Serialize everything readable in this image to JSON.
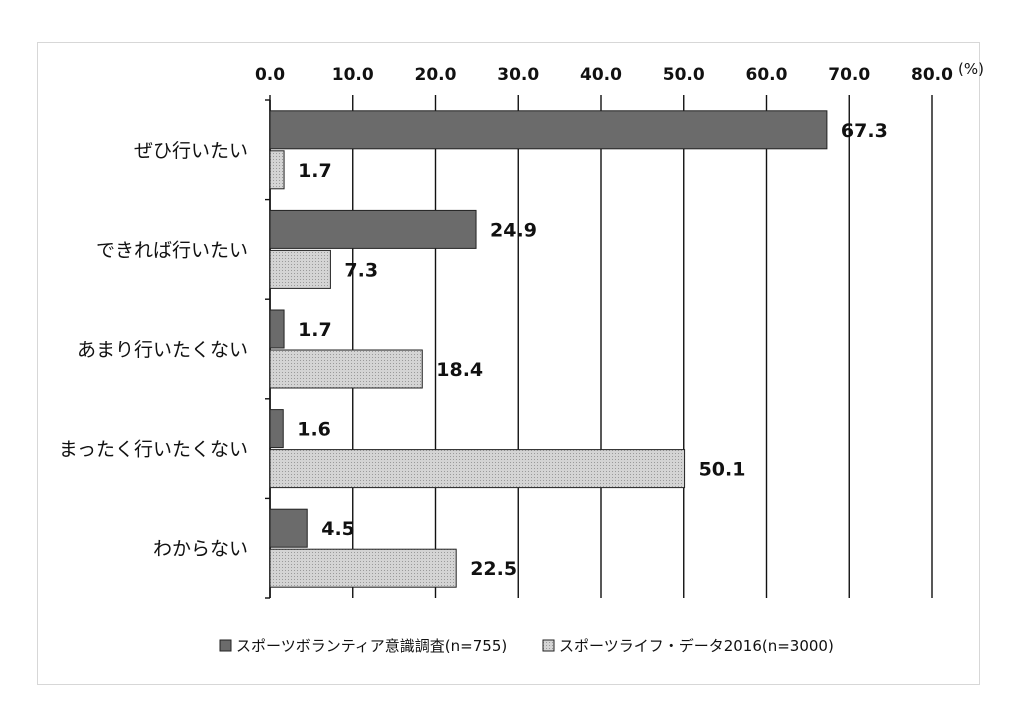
{
  "chart_data": {
    "type": "bar",
    "orientation": "horizontal",
    "unit": "(%)",
    "xlim": [
      0,
      80
    ],
    "xticks": [
      "0.0",
      "10.0",
      "20.0",
      "30.0",
      "40.0",
      "50.0",
      "60.0",
      "70.0",
      "80.0"
    ],
    "categories": [
      "ぜひ行いたい",
      "できれば行いたい",
      "あまり行いたくない",
      "まったく行いたくない",
      "わからない"
    ],
    "series": [
      {
        "name": "スポーツボランティア意識調査(n=755)",
        "values": [
          67.3,
          24.9,
          1.7,
          1.6,
          4.5
        ],
        "color": "#6b6b6b"
      },
      {
        "name": "スポーツライフ・データ2016(n=3000)",
        "values": [
          1.7,
          7.3,
          18.4,
          50.1,
          22.5
        ],
        "color": "#cfcfcf"
      }
    ],
    "grid": "vertical",
    "axis_position": "top",
    "legend": "bottom"
  }
}
